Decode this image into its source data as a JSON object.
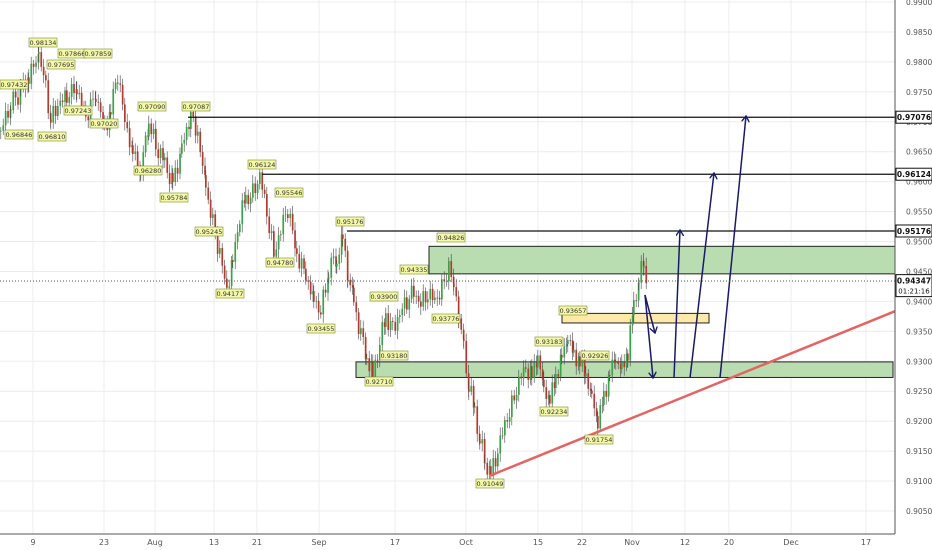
{
  "chart_data": {
    "type": "candlestick",
    "price_axis": {
      "ylim": [
        0.9,
        0.99
      ],
      "ticks": [
        "0.99000",
        "0.98500",
        "0.98000",
        "0.97500",
        "0.97000",
        "0.96500",
        "0.96000",
        "0.95500",
        "0.95000",
        "0.94500",
        "0.94000",
        "0.93500",
        "0.93000",
        "0.92500",
        "0.92000",
        "0.91500",
        "0.91000",
        "0.90500"
      ],
      "current_price": "0.94347",
      "countdown": "01:21:16"
    },
    "time_axis": {
      "ticks": [
        "9",
        "23",
        "Aug",
        "13",
        "21",
        "Sep",
        "17",
        "Oct",
        "15",
        "22",
        "Nov",
        "12",
        "20",
        "Dec",
        "17"
      ]
    },
    "level_lines": [
      {
        "value": 0.97076,
        "label": "0.97076"
      },
      {
        "value": 0.96124,
        "label": "0.96124"
      },
      {
        "value": 0.95176,
        "label": "0.95176"
      }
    ],
    "zones": [
      {
        "name": "resistance-zone",
        "from": 0.9446,
        "to": 0.9492,
        "color": "#b9ddb0"
      },
      {
        "name": "pullback-zone",
        "from": 0.9364,
        "to": 0.938,
        "color": "#ffe9a6"
      },
      {
        "name": "support-zone",
        "from": 0.9273,
        "to": 0.9299,
        "color": "#b9ddb0"
      }
    ],
    "trendline": {
      "from": {
        "date": "Oct 3",
        "value": 0.9109
      },
      "to": {
        "date": "end",
        "value": 0.9387
      },
      "color": "#e06666"
    },
    "swing_labels": [
      "0.97432",
      "0.98134",
      "0.97866",
      "0.97859",
      "0.97695",
      "0.96846",
      "0.96810",
      "0.97243",
      "0.97020",
      "0.97090",
      "0.97087",
      "0.96280",
      "0.95784",
      "0.96124",
      "0.95546",
      "0.95245",
      "0.94780",
      "0.94177",
      "0.95176",
      "0.94826",
      "0.94335",
      "0.93900",
      "0.93776",
      "0.93455",
      "0.93180",
      "0.92710",
      "0.93657",
      "0.93183",
      "0.92926",
      "0.92234",
      "0.91754",
      "0.91049"
    ],
    "candle_colors": {
      "up": "#3aa24a",
      "down": "#b23b2f",
      "wick": "#444444"
    }
  }
}
